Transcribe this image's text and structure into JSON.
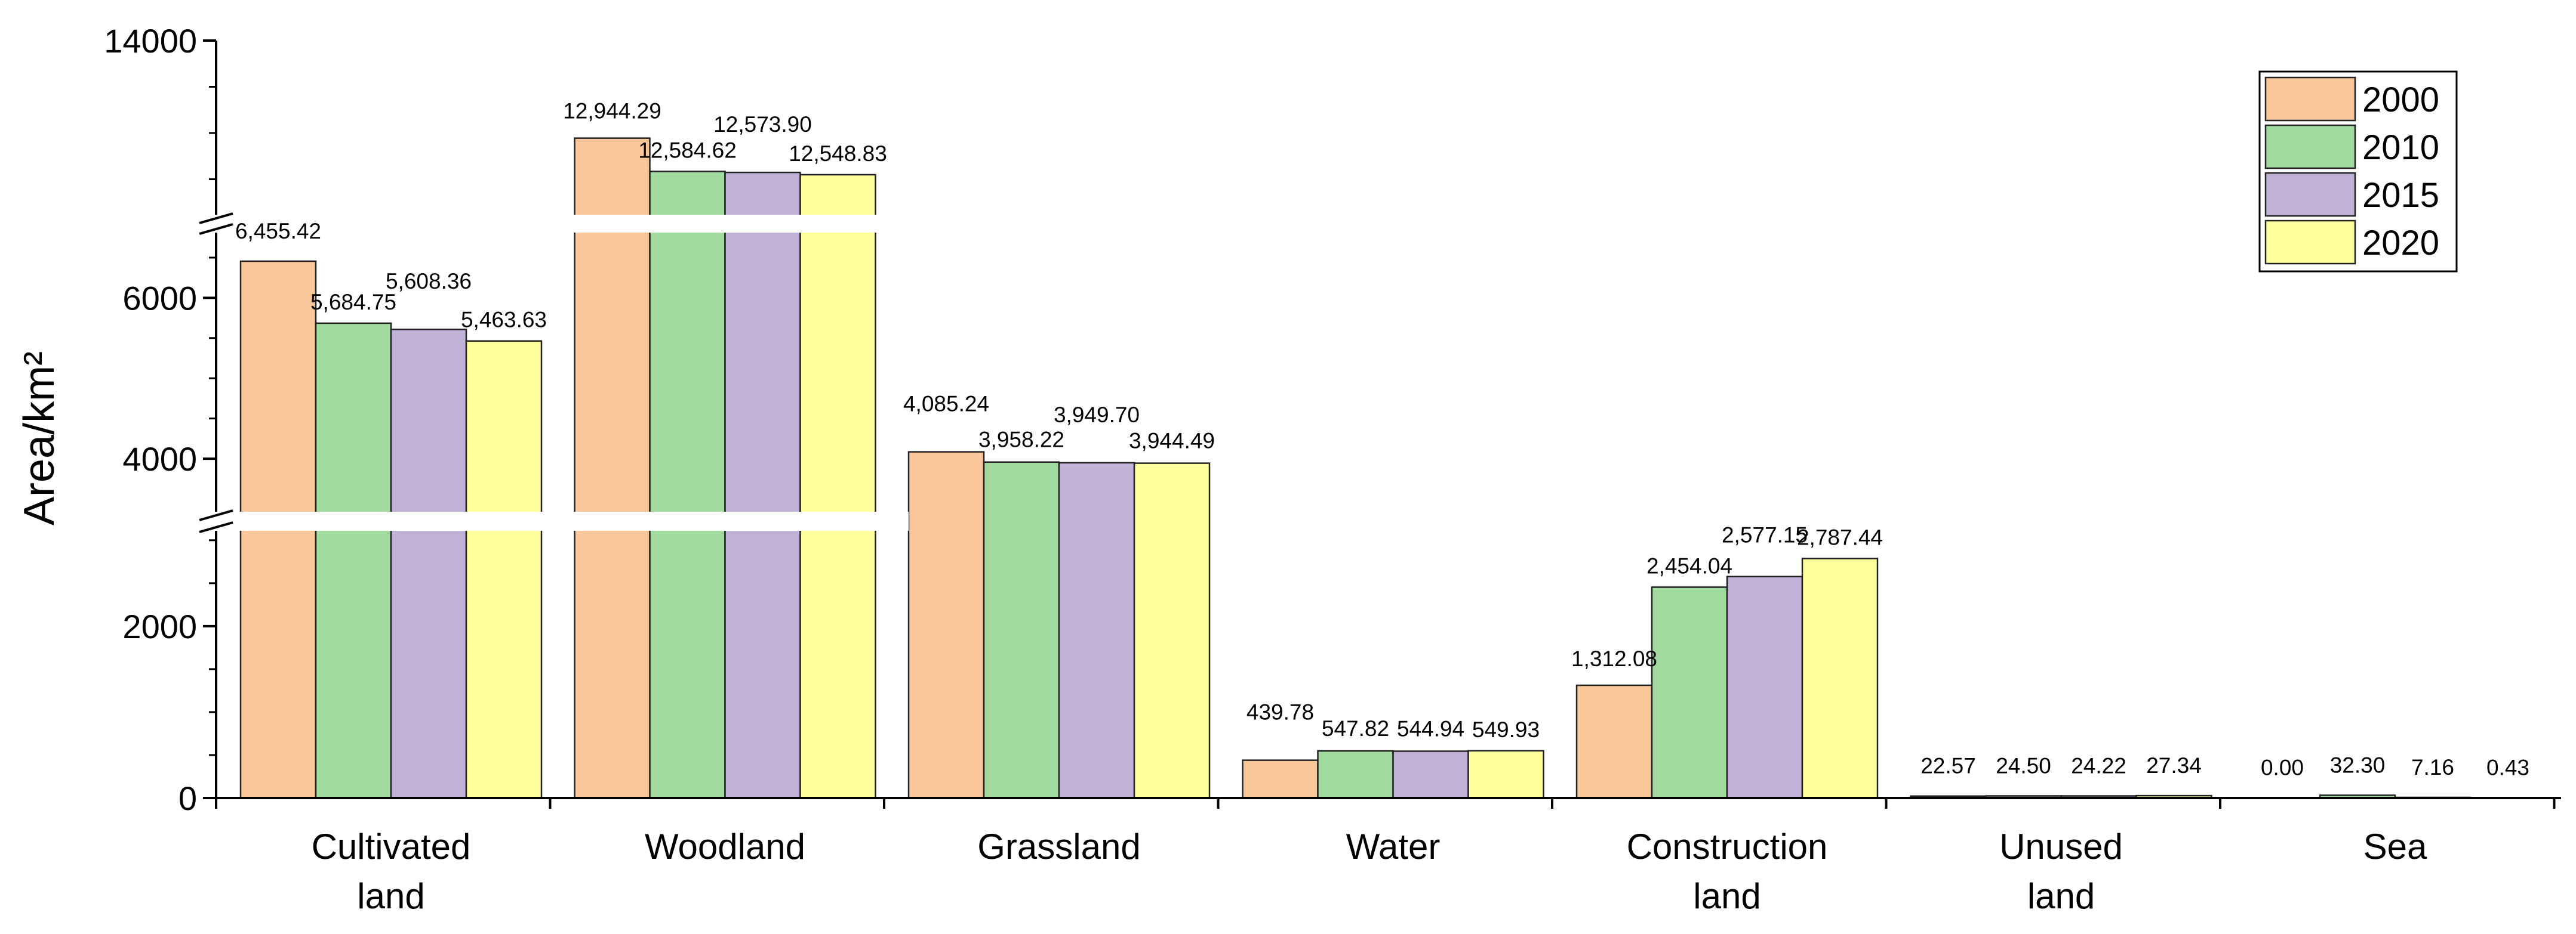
{
  "chart_data": {
    "type": "bar",
    "title": "",
    "xlabel": "",
    "ylabel": "Area/km²",
    "categories": [
      [
        "Cultivated",
        "land"
      ],
      [
        "Woodland"
      ],
      [
        "Grassland"
      ],
      [
        "Water"
      ],
      [
        "Construction",
        "land"
      ],
      [
        "Unused",
        "land"
      ],
      [
        "Sea"
      ]
    ],
    "series": [
      {
        "name": "2000",
        "color": "#F9C79A",
        "values": [
          6455.42,
          12944.29,
          4085.24,
          439.78,
          1312.08,
          22.57,
          0.0
        ],
        "labels": [
          "6,455.42",
          "12,944.29",
          "4,085.24",
          "439.78",
          "1,312.08",
          "22.57",
          "0.00"
        ]
      },
      {
        "name": "2010",
        "color": "#A0DA9E",
        "values": [
          5684.75,
          12584.62,
          3958.22,
          547.82,
          2454.04,
          24.5,
          32.3
        ],
        "labels": [
          "5,684.75",
          "12,584.62",
          "3,958.22",
          "547.82",
          "2,454.04",
          "24.50",
          "32.30"
        ]
      },
      {
        "name": "2015",
        "color": "#C3B2D8",
        "values": [
          5608.36,
          12573.9,
          3949.7,
          544.94,
          2577.15,
          24.22,
          7.16
        ],
        "labels": [
          "5,608.36",
          "12,573.90",
          "3,949.70",
          "544.94",
          "2,577.15",
          "24.22",
          "7.16"
        ]
      },
      {
        "name": "2020",
        "color": "#FFFF9E",
        "values": [
          5463.63,
          12548.83,
          3944.49,
          549.93,
          2787.44,
          27.34,
          0.43
        ],
        "labels": [
          "5,463.63",
          "12,548.83",
          "3,944.49",
          "549.93",
          "2,787.44",
          "27.34",
          "0.43"
        ]
      }
    ],
    "y_axis": {
      "ticks": [
        0,
        2000,
        4000,
        6000,
        14000
      ],
      "tick_labels": [
        "0",
        "2000",
        "4000",
        "6000",
        "14000"
      ],
      "segments": [
        {
          "from": 0,
          "to": 3200
        },
        {
          "from": 3200,
          "to": 6900
        },
        {
          "from": 12000,
          "to": 14000
        }
      ]
    },
    "legend": {
      "position": "top-right",
      "entries": [
        "2000",
        "2010",
        "2015",
        "2020"
      ]
    },
    "grid": false
  }
}
